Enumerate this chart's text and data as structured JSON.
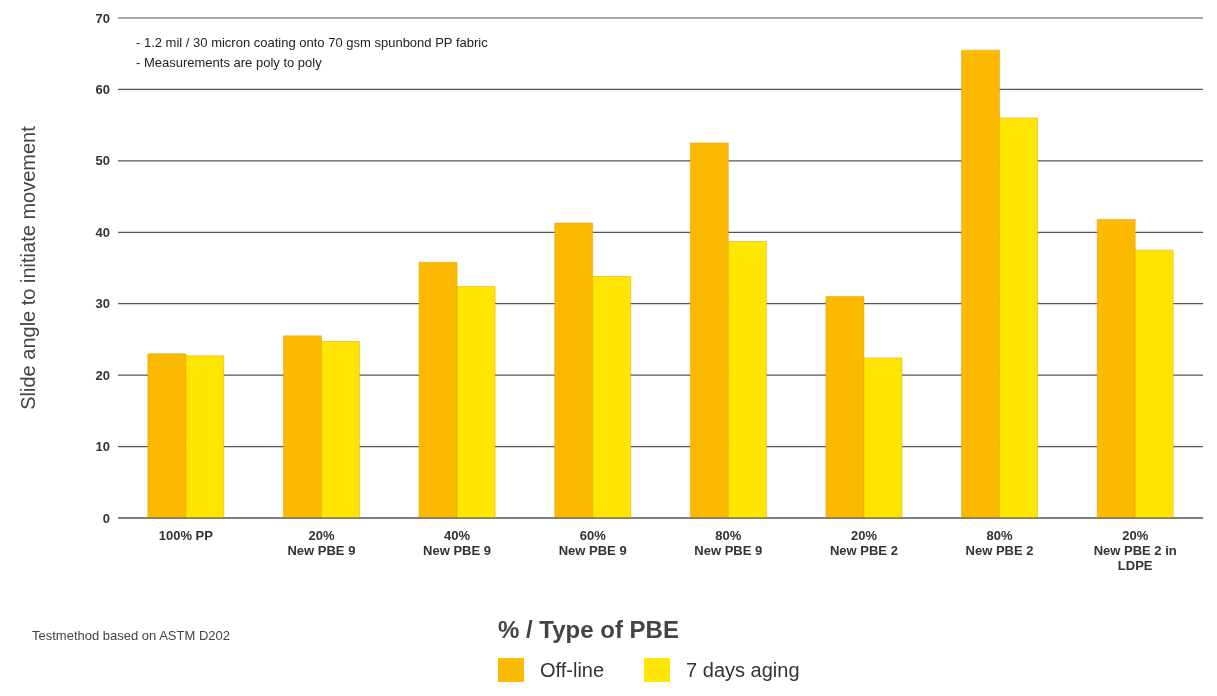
{
  "chart_data": {
    "type": "bar",
    "xlabel": "% / Type of PBE",
    "ylabel": "Slide angle to initiate movement",
    "categories": [
      "100% PP",
      "20%\nNew PBE 9",
      "40%\nNew PBE 9",
      "60%\nNew PBE 9",
      "80%\nNew PBE 9",
      "20%\nNew PBE 2",
      "80%\nNew PBE 2",
      "20%\nNew PBE 2 in\nLDPE"
    ],
    "series": [
      {
        "name": "Off-line",
        "color": "#fbb900",
        "values": [
          23,
          25.5,
          35.8,
          41.3,
          52.5,
          31,
          65.5,
          41.8
        ]
      },
      {
        "name": "7 days aging",
        "color": "#ffe600",
        "values": [
          22.7,
          24.7,
          32.4,
          33.8,
          38.7,
          22.4,
          56,
          37.5
        ]
      }
    ],
    "ylim": [
      0,
      70
    ],
    "yticks": [
      0,
      10,
      20,
      30,
      40,
      50,
      60,
      70
    ],
    "grid": "y",
    "legend": "bottom left",
    "annotations": [
      "- 1.2 mil / 30 micron coating onto 70 gsm spunbond PP fabric",
      "- Measurements are poly to poly",
      "Testmethod based on ASTM D202"
    ]
  }
}
